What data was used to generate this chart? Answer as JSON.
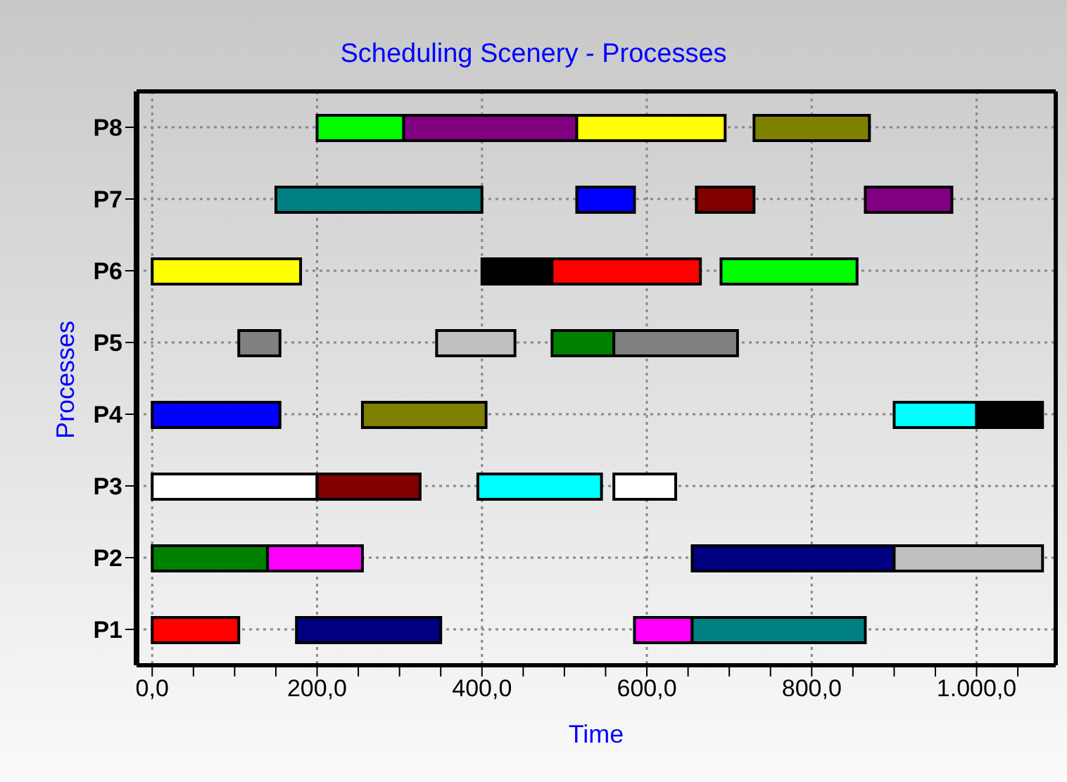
{
  "chart_data": {
    "type": "bar",
    "orientation": "horizontal",
    "title": "Scheduling Scenery - Processes",
    "xlabel": "Time",
    "ylabel": "Processes",
    "categories": [
      "P8",
      "P7",
      "P6",
      "P5",
      "P4",
      "P3",
      "P2",
      "P1"
    ],
    "series": [
      {
        "colors": [
          "#00ff00",
          "#008080",
          "#ffff00",
          "#808080",
          "#0000ff",
          "#ffffff",
          "#008000",
          "#ff0000"
        ],
        "base": [
          200,
          150,
          0,
          105,
          0,
          0,
          0,
          0
        ],
        "values": [
          105,
          250,
          180,
          50,
          155,
          200,
          140,
          105
        ]
      },
      {
        "colors": [
          "#800080",
          "#0000ff",
          "#000000",
          "#c0c0c0",
          "#808000",
          "#800000",
          "#ff00ff",
          "#000080"
        ],
        "base": [
          305,
          515,
          400,
          345,
          255,
          200,
          140,
          175
        ],
        "values": [
          210,
          70,
          85,
          95,
          150,
          125,
          115,
          175
        ]
      },
      {
        "colors": [
          "#ffff00",
          "#800000",
          "#ff0000",
          "#008000",
          "#00ffff",
          "#00ffff",
          "#000080",
          "#ff00ff"
        ],
        "base": [
          515,
          660,
          485,
          485,
          900,
          395,
          655,
          585
        ],
        "values": [
          180,
          70,
          180,
          75,
          100,
          150,
          245,
          70
        ]
      },
      {
        "colors": [
          "#808000",
          "#800080",
          "#00ff00",
          "#808080",
          "#000000",
          "#ffffff",
          "#c0c0c0",
          "#008080"
        ],
        "base": [
          730,
          865,
          690,
          560,
          1000,
          560,
          900,
          655
        ],
        "values": [
          140,
          105,
          165,
          150,
          80,
          75,
          180,
          210
        ]
      }
    ],
    "xlim": [
      -19,
      1096
    ],
    "xticks": [
      {
        "value": 0,
        "label": "0,0"
      },
      {
        "value": 50,
        "label": null
      },
      {
        "value": 100,
        "label": null
      },
      {
        "value": 150,
        "label": null
      },
      {
        "value": 200,
        "label": "200,0"
      },
      {
        "value": 250,
        "label": null
      },
      {
        "value": 300,
        "label": null
      },
      {
        "value": 350,
        "label": null
      },
      {
        "value": 400,
        "label": "400,0"
      },
      {
        "value": 450,
        "label": null
      },
      {
        "value": 500,
        "label": null
      },
      {
        "value": 550,
        "label": null
      },
      {
        "value": 600,
        "label": "600,0"
      },
      {
        "value": 650,
        "label": null
      },
      {
        "value": 700,
        "label": null
      },
      {
        "value": 750,
        "label": null
      },
      {
        "value": 800,
        "label": "800,0"
      },
      {
        "value": 850,
        "label": null
      },
      {
        "value": 900,
        "label": null
      },
      {
        "value": 950,
        "label": null
      },
      {
        "value": 1000,
        "label": "1.000,0"
      },
      {
        "value": 1050,
        "label": null
      }
    ],
    "grid": true
  }
}
